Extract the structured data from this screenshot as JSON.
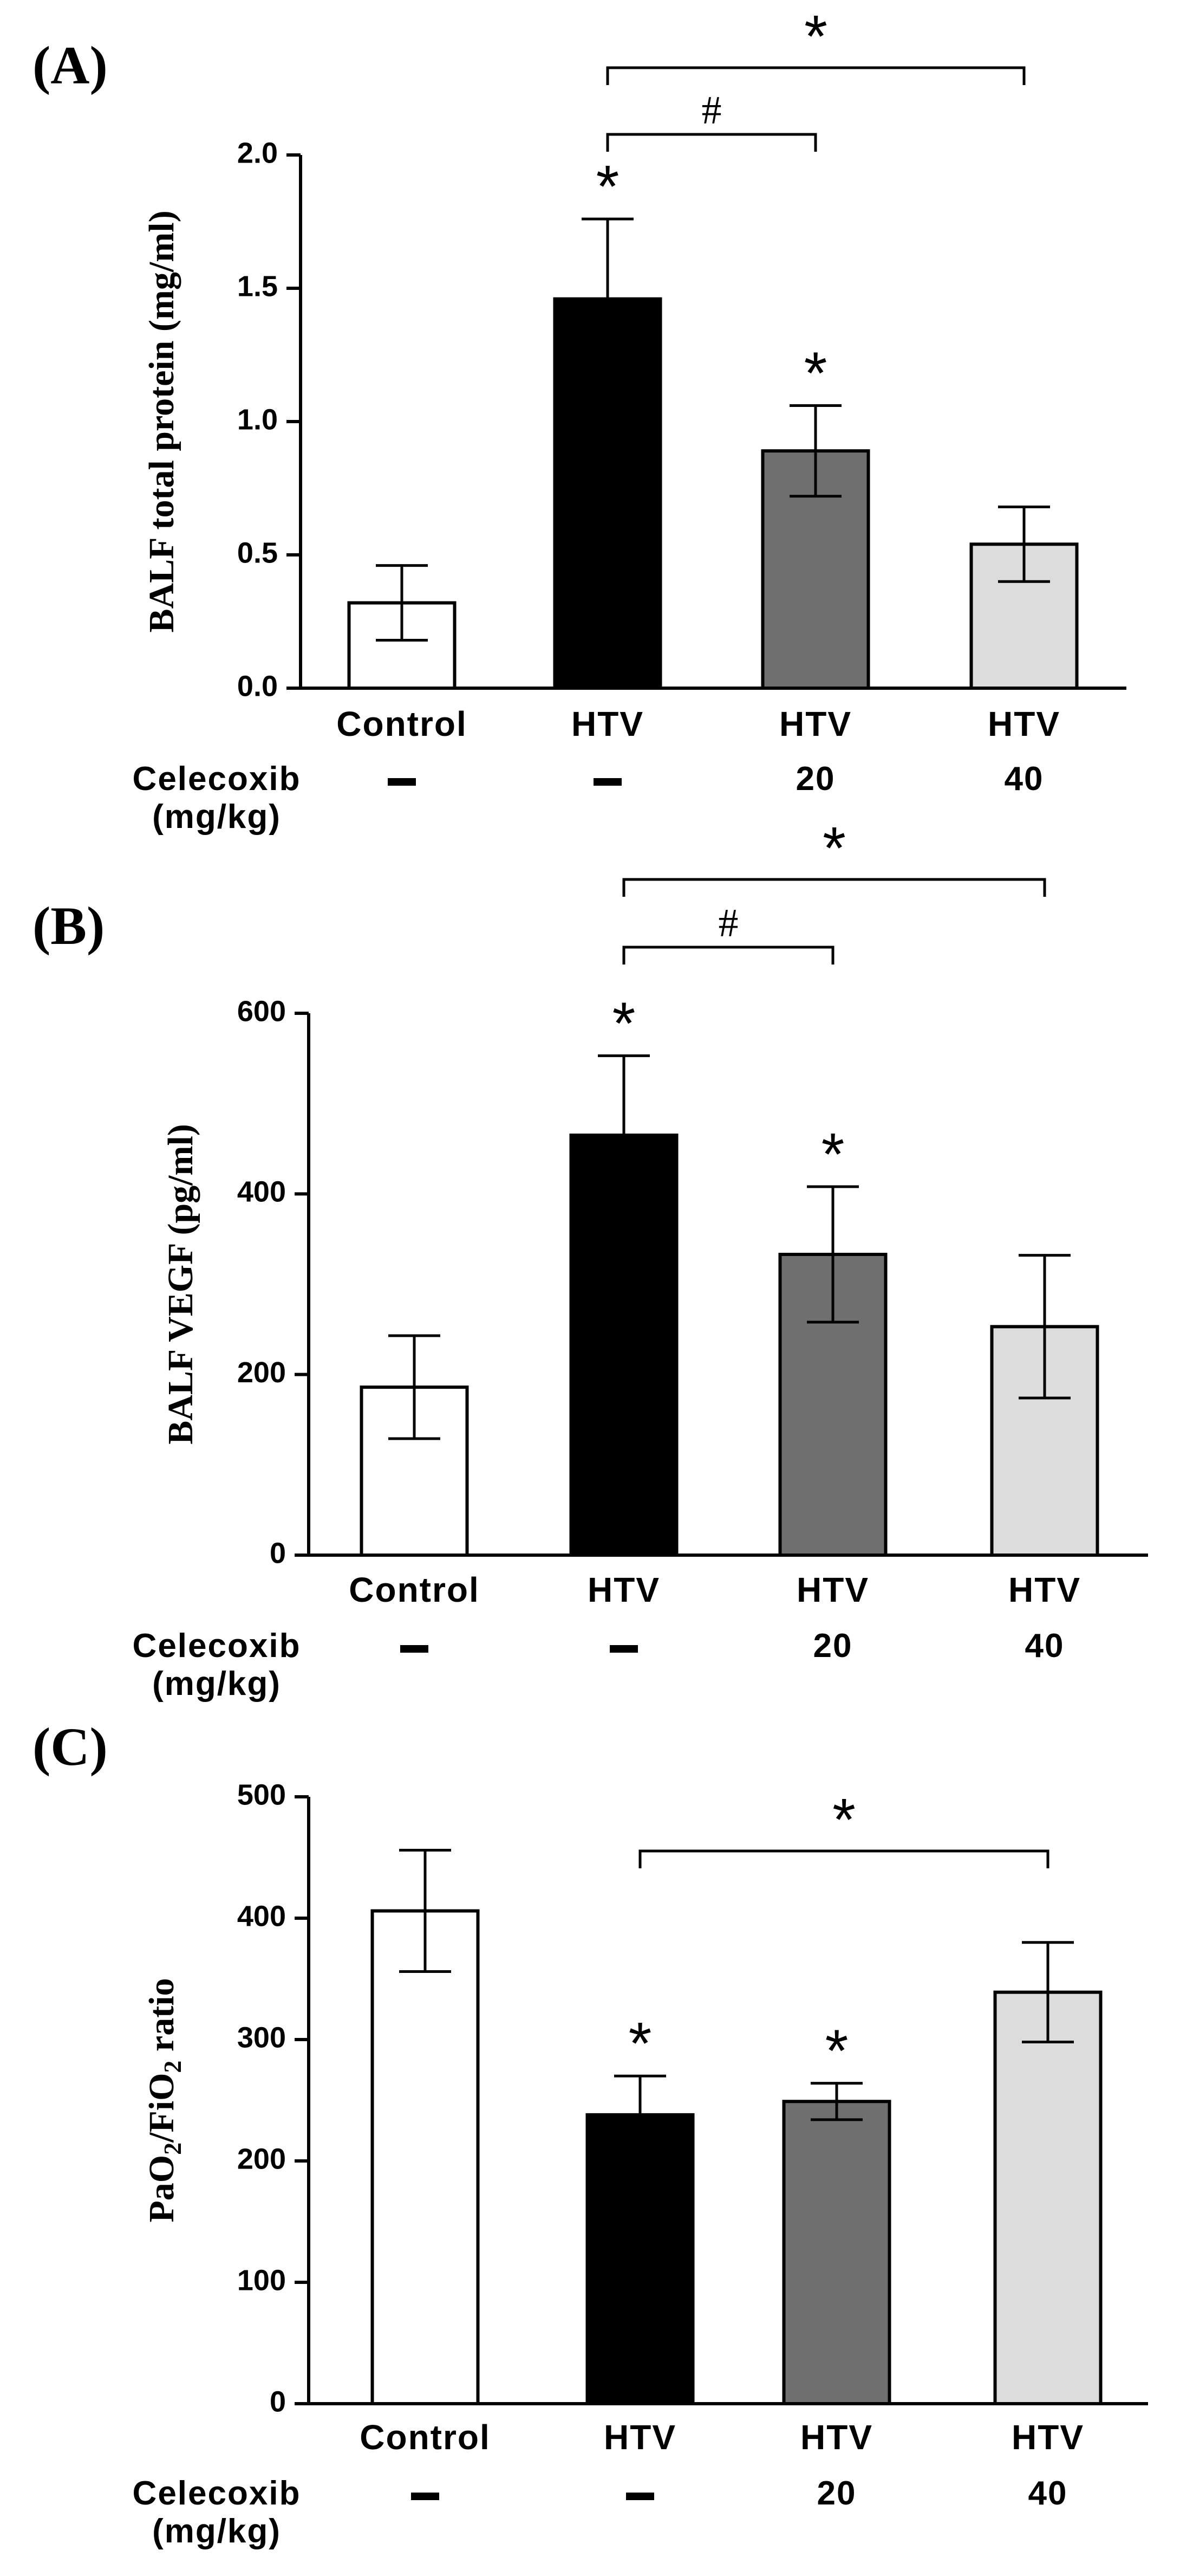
{
  "chart_data": [
    {
      "type": "bar",
      "panel_label": "(A)",
      "ylabel": "BALF total protein (mg/ml)",
      "ylim": [
        0,
        2.0
      ],
      "yticks": [
        "0.0",
        "0.5",
        "1.0",
        "1.5",
        "2.0"
      ],
      "categories": [
        "Control",
        "HTV",
        "HTV",
        "HTV"
      ],
      "dose_row_label_1": "Celecoxib",
      "dose_row_label_2": "(mg/kg)",
      "doses": [
        "–",
        "–",
        "20",
        "40"
      ],
      "values": [
        0.32,
        1.46,
        0.89,
        0.54
      ],
      "errors": [
        0.14,
        0.3,
        0.17,
        0.14
      ],
      "bar_colors": [
        "#ffffff",
        "#000000",
        "#6f6f6f",
        "#dcdcdc"
      ],
      "point_annotations": [
        "",
        "*",
        "*",
        ""
      ],
      "comparisons": [
        {
          "from": 1,
          "to": 3,
          "symbol": "*"
        },
        {
          "from": 1,
          "to": 2,
          "symbol": "#"
        }
      ]
    },
    {
      "type": "bar",
      "panel_label": "(B)",
      "ylabel": "BALF VEGF (pg/ml)",
      "ylim": [
        0,
        600
      ],
      "yticks": [
        "0",
        "200",
        "400",
        "600"
      ],
      "categories": [
        "Control",
        "HTV",
        "HTV",
        "HTV"
      ],
      "dose_row_label_1": "Celecoxib",
      "dose_row_label_2": "(mg/kg)",
      "doses": [
        "–",
        "–",
        "20",
        "40"
      ],
      "values": [
        186,
        465,
        333,
        253
      ],
      "errors": [
        57,
        88,
        75,
        79
      ],
      "bar_colors": [
        "#ffffff",
        "#000000",
        "#6f6f6f",
        "#dcdcdc"
      ],
      "point_annotations": [
        "",
        "*",
        "*",
        ""
      ],
      "comparisons": [
        {
          "from": 1,
          "to": 3,
          "symbol": "*"
        },
        {
          "from": 1,
          "to": 2,
          "symbol": "#"
        }
      ]
    },
    {
      "type": "bar",
      "panel_label": "(C)",
      "ylabel_main": "PaO",
      "ylabel_sub1": "2",
      "ylabel_mid": "/FiO",
      "ylabel_sub2": "2",
      "ylabel_end": " ratio",
      "ylim": [
        0,
        500
      ],
      "yticks": [
        "0",
        "100",
        "200",
        "300",
        "400",
        "500"
      ],
      "categories": [
        "Control",
        "HTV",
        "HTV",
        "HTV"
      ],
      "dose_row_label_1": "Celecoxib",
      "dose_row_label_2": "(mg/kg)",
      "doses": [
        "–",
        "–",
        "20",
        "40"
      ],
      "values": [
        406,
        238,
        249,
        339
      ],
      "errors": [
        50,
        32,
        15,
        41
      ],
      "bar_colors": [
        "#ffffff",
        "#000000",
        "#6f6f6f",
        "#dcdcdc"
      ],
      "point_annotations": [
        "",
        "*",
        "*",
        ""
      ],
      "comparisons": [
        {
          "from": 1,
          "to": 3,
          "symbol": "*"
        }
      ]
    }
  ]
}
